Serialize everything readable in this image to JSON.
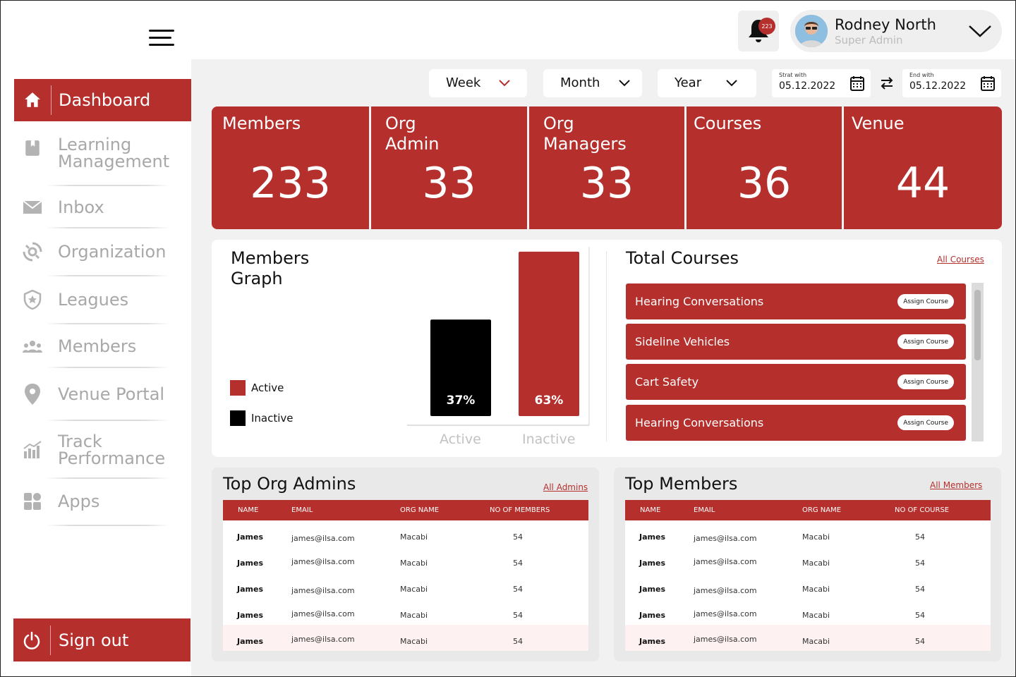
{
  "sidebar": {
    "items": [
      {
        "label": "Dashboard",
        "icon": "home-icon"
      },
      {
        "label": "Learning\nManagement",
        "icon": "book-icon"
      },
      {
        "label": "Inbox",
        "icon": "mail-icon"
      },
      {
        "label": "Organization",
        "icon": "organization-icon"
      },
      {
        "label": "Leagues",
        "icon": "shield-star-icon"
      },
      {
        "label": "Members",
        "icon": "group-icon"
      },
      {
        "label": "Venue Portal",
        "icon": "location-pin-icon"
      },
      {
        "label": "Track\nPerformance",
        "icon": "bar-chart-icon"
      },
      {
        "label": "Apps",
        "icon": "apps-grid-icon"
      }
    ],
    "signout_label": "Sign out"
  },
  "header": {
    "notification_count": "223",
    "user_name": "Rodney North",
    "user_role": "Super Admin"
  },
  "filters": {
    "week": "Week",
    "month": "Month",
    "year": "Year",
    "start_label": "Strat with",
    "start_value": "05.12.2022",
    "end_label": "End with",
    "end_value": "05.12.2022"
  },
  "stats": [
    {
      "title": "Members",
      "value": "233"
    },
    {
      "title": "Org\nAdmin",
      "value": "33"
    },
    {
      "title": "Org\nManagers",
      "value": "33"
    },
    {
      "title": "Courses",
      "value": "36"
    },
    {
      "title": "Venue",
      "value": "44"
    }
  ],
  "members_graph": {
    "title": "Members\nGraph",
    "legend": [
      {
        "label": "Active",
        "color": "#b52f2d"
      },
      {
        "label": "Inactive",
        "color": "#000000"
      }
    ]
  },
  "chart_data": {
    "type": "bar",
    "categories": [
      "Active",
      "Inactive"
    ],
    "values": [
      37,
      63
    ],
    "data_labels": [
      "37%",
      "63%"
    ],
    "colors": [
      "#000000",
      "#b52f2d"
    ],
    "ylim": [
      0,
      100
    ]
  },
  "total_courses": {
    "title": "Total Courses",
    "link": "All Courses",
    "assign_label": "Assign Course",
    "items": [
      "Hearing Conversations",
      "Sideline Vehicles",
      "Cart Safety",
      "Hearing Conversations"
    ]
  },
  "top_admins": {
    "title": "Top Org Admins",
    "link": "All Admins",
    "columns": [
      "NAME",
      "EMAIL",
      "ORG NAME",
      "NO OF MEMBERS"
    ],
    "rows": [
      [
        "James",
        "james@ilsa.com",
        "Macabi",
        "54"
      ],
      [
        "James",
        "james@ilsa.com",
        "Macabi",
        "54"
      ],
      [
        "James",
        "james@ilsa.com",
        "Macabi",
        "54"
      ],
      [
        "James",
        "james@ilsa.com",
        "Macabi",
        "54"
      ],
      [
        "James",
        "james@ilsa.com",
        "Macabi",
        "54"
      ]
    ]
  },
  "top_members": {
    "title": "Top Members",
    "link": "All Members",
    "columns": [
      "NAME",
      "EMAIL",
      "ORG NAME",
      "NO OF COURSE"
    ],
    "rows": [
      [
        "James",
        "james@ilsa.com",
        "Macabi",
        "54"
      ],
      [
        "James",
        "james@ilsa.com",
        "Macabi",
        "54"
      ],
      [
        "James",
        "james@ilsa.com",
        "Macabi",
        "54"
      ],
      [
        "James",
        "james@ilsa.com",
        "Macabi",
        "54"
      ],
      [
        "James",
        "james@ilsa.com",
        "Macabi",
        "54"
      ]
    ]
  },
  "colors": {
    "brand": "#b52f2d",
    "background": "#f1f1f1",
    "muted": "#a8a8a8"
  }
}
